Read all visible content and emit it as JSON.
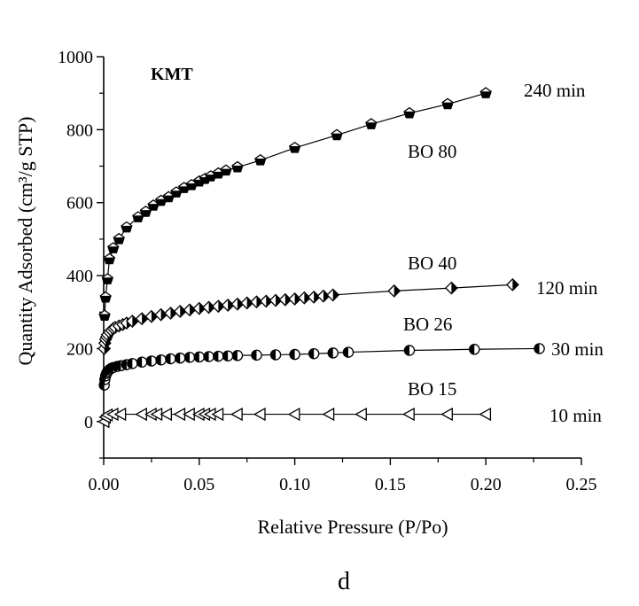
{
  "chart_data": {
    "type": "scatter",
    "panel_label": "KMT",
    "xlabel": "Relative Pressure (P/Po)",
    "ylabel": "Quantity Adsorbed (cm³/g STP)",
    "xlim": [
      0,
      0.25
    ],
    "ylim": [
      -100,
      1000
    ],
    "xticks": [
      "0.00",
      "0.05",
      "0.10",
      "0.15",
      "0.20",
      "0.25"
    ],
    "yticks": [
      "0",
      "200",
      "400",
      "600",
      "800",
      "1000"
    ],
    "grid": false,
    "caption": "d",
    "series": [
      {
        "name": "BO 80",
        "time_label": "240 min",
        "marker": "pentagon",
        "x": [
          0.0005,
          0.001,
          0.002,
          0.003,
          0.005,
          0.008,
          0.012,
          0.018,
          0.022,
          0.026,
          0.03,
          0.034,
          0.038,
          0.042,
          0.046,
          0.05,
          0.053,
          0.056,
          0.06,
          0.064,
          0.07,
          0.082,
          0.1,
          0.122,
          0.14,
          0.16,
          0.18,
          0.2
        ],
        "y": [
          290,
          340,
          390,
          445,
          475,
          500,
          532,
          560,
          575,
          592,
          605,
          615,
          628,
          640,
          648,
          658,
          665,
          672,
          680,
          688,
          697,
          716,
          750,
          785,
          815,
          845,
          870,
          900
        ]
      },
      {
        "name": "BO 40",
        "time_label": "120 min",
        "marker": "diamond",
        "x": [
          0.0003,
          0.0006,
          0.001,
          0.0015,
          0.002,
          0.003,
          0.004,
          0.005,
          0.006,
          0.008,
          0.01,
          0.012,
          0.015,
          0.02,
          0.025,
          0.03,
          0.035,
          0.04,
          0.045,
          0.05,
          0.055,
          0.06,
          0.065,
          0.07,
          0.075,
          0.08,
          0.085,
          0.09,
          0.095,
          0.1,
          0.105,
          0.11,
          0.115,
          0.12,
          0.152,
          0.182,
          0.214
        ],
        "y": [
          200,
          215,
          225,
          232,
          238,
          245,
          250,
          255,
          258,
          262,
          266,
          270,
          275,
          282,
          288,
          293,
          297,
          302,
          306,
          310,
          313,
          316,
          319,
          322,
          325,
          328,
          330,
          332,
          334,
          336,
          339,
          341,
          344,
          347,
          358,
          366,
          375
        ]
      },
      {
        "name": "BO 26",
        "time_label": "30 min",
        "marker": "half-filled circle",
        "x": [
          0.0003,
          0.0006,
          0.001,
          0.0015,
          0.002,
          0.003,
          0.004,
          0.005,
          0.007,
          0.009,
          0.012,
          0.015,
          0.02,
          0.025,
          0.03,
          0.035,
          0.04,
          0.045,
          0.05,
          0.055,
          0.06,
          0.065,
          0.07,
          0.08,
          0.09,
          0.1,
          0.11,
          0.12,
          0.128,
          0.16,
          0.194,
          0.228
        ],
        "y": [
          100,
          115,
          125,
          132,
          137,
          142,
          146,
          148,
          151,
          153,
          156,
          159,
          163,
          166,
          169,
          172,
          174,
          176,
          177,
          178,
          179,
          180,
          181,
          182,
          183,
          184,
          186,
          188,
          190,
          195,
          198,
          200
        ]
      },
      {
        "name": "BO 15",
        "time_label": "10 min",
        "marker": "left-pointing triangle",
        "x": [
          0.0003,
          0.001,
          0.002,
          0.005,
          0.009,
          0.02,
          0.025,
          0.028,
          0.033,
          0.04,
          0.045,
          0.05,
          0.053,
          0.056,
          0.06,
          0.07,
          0.082,
          0.1,
          0.118,
          0.135,
          0.16,
          0.18,
          0.2
        ],
        "y": [
          0,
          12,
          18,
          20,
          20,
          20,
          20,
          20,
          20,
          20,
          20,
          20,
          20,
          20,
          20,
          20,
          20,
          20,
          20,
          20,
          20,
          20,
          20
        ]
      }
    ]
  }
}
